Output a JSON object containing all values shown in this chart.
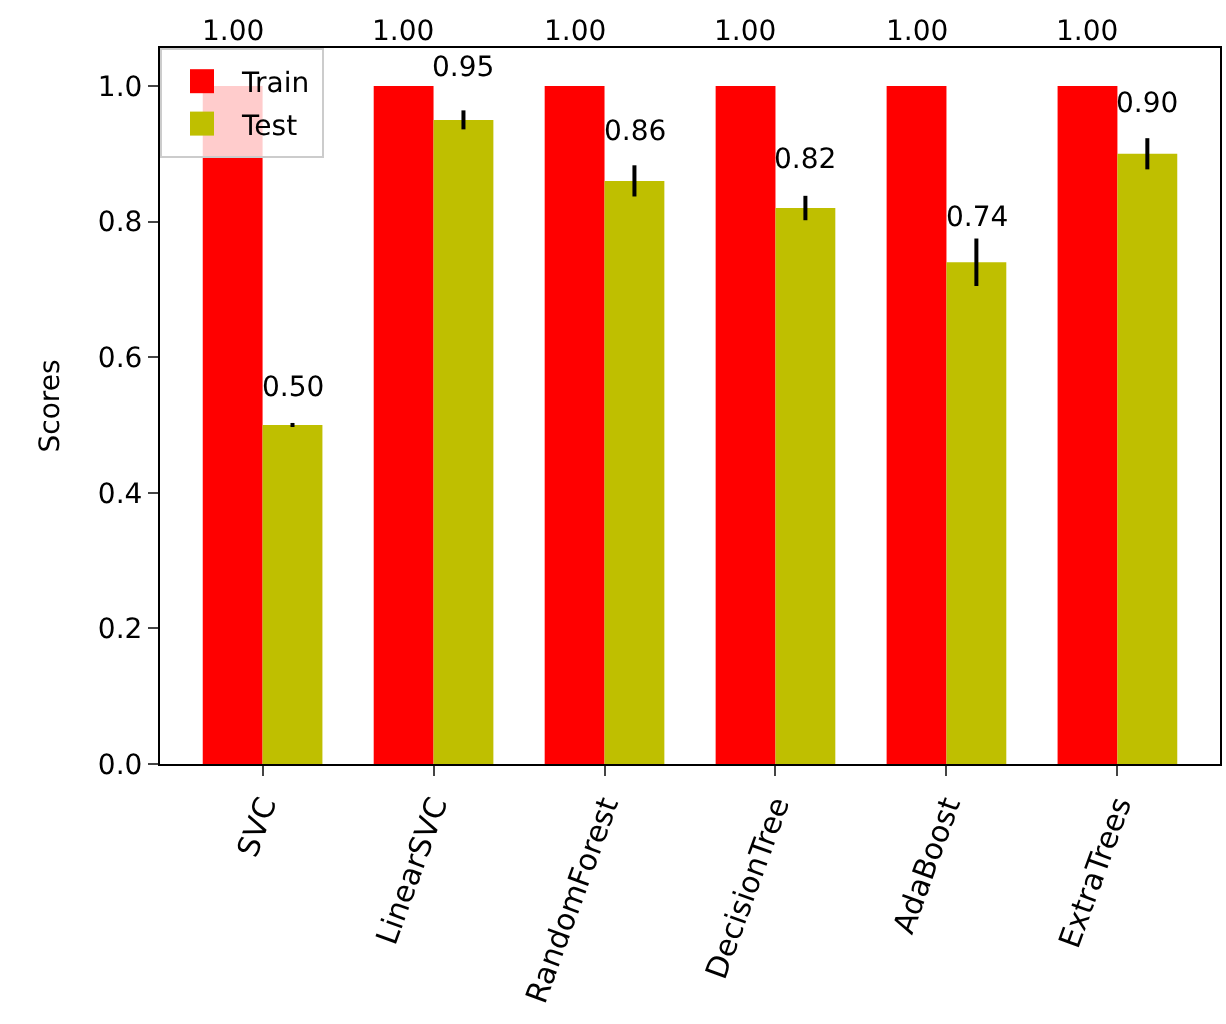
{
  "chart_data": {
    "type": "bar",
    "ylabel": "Scores",
    "categories": [
      "SVC",
      "LinearSVC",
      "RandomForest",
      "DecisionTree",
      "AdaBoost",
      "ExtraTrees"
    ],
    "series": [
      {
        "name": "Train",
        "color": "#ff0000",
        "values": [
          1.0,
          1.0,
          1.0,
          1.0,
          1.0,
          1.0
        ],
        "value_labels": [
          "1.00",
          "1.00",
          "1.00",
          "1.00",
          "1.00",
          "1.00"
        ]
      },
      {
        "name": "Test",
        "color": "#bfbf00",
        "values": [
          0.5,
          0.95,
          0.86,
          0.82,
          0.74,
          0.9
        ],
        "errors": [
          0.003,
          0.014,
          0.023,
          0.018,
          0.035,
          0.023
        ],
        "value_labels": [
          "0.50",
          "0.95",
          "0.86",
          "0.82",
          "0.74",
          "0.90"
        ]
      }
    ],
    "ylim": [
      0,
      1.056
    ],
    "yticks": [
      {
        "value": 0,
        "label": "0.0"
      },
      {
        "value": 0.2,
        "label": "0.2"
      },
      {
        "value": 0.4,
        "label": "0.4"
      },
      {
        "value": 0.6,
        "label": "0.6"
      },
      {
        "value": 0.8,
        "label": "0.8"
      },
      {
        "value": 1.0,
        "label": "1.0"
      }
    ],
    "legend": "top left"
  }
}
